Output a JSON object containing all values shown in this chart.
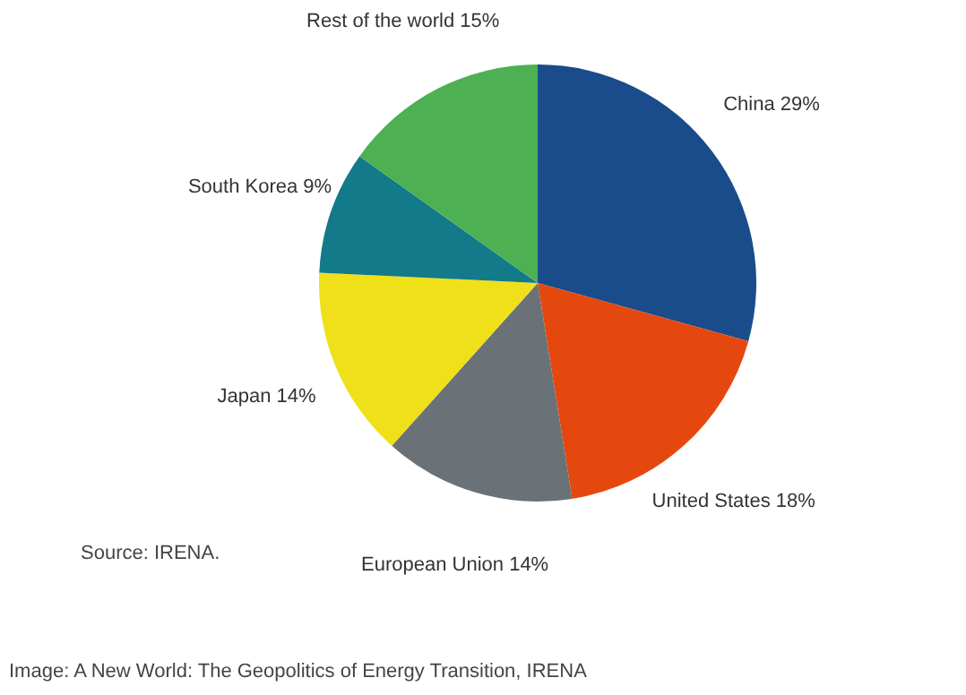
{
  "chart_data": {
    "type": "pie",
    "categories": [
      "China",
      "United States",
      "European Union",
      "Japan",
      "South Korea",
      "Rest of the world"
    ],
    "values": [
      29,
      18,
      14,
      14,
      9,
      15
    ],
    "value_labels": [
      "29%",
      "18%",
      "14%",
      "14%",
      "9%",
      "15%"
    ],
    "colors": [
      "#1a4c8b",
      "#e5480f",
      "#6a7277",
      "#efe01a",
      "#127a88",
      "#4db053"
    ],
    "annotations": [
      "Source: IRENA.",
      "Image: A New World: The Geopolitics of Energy Transition, IRENA"
    ]
  }
}
